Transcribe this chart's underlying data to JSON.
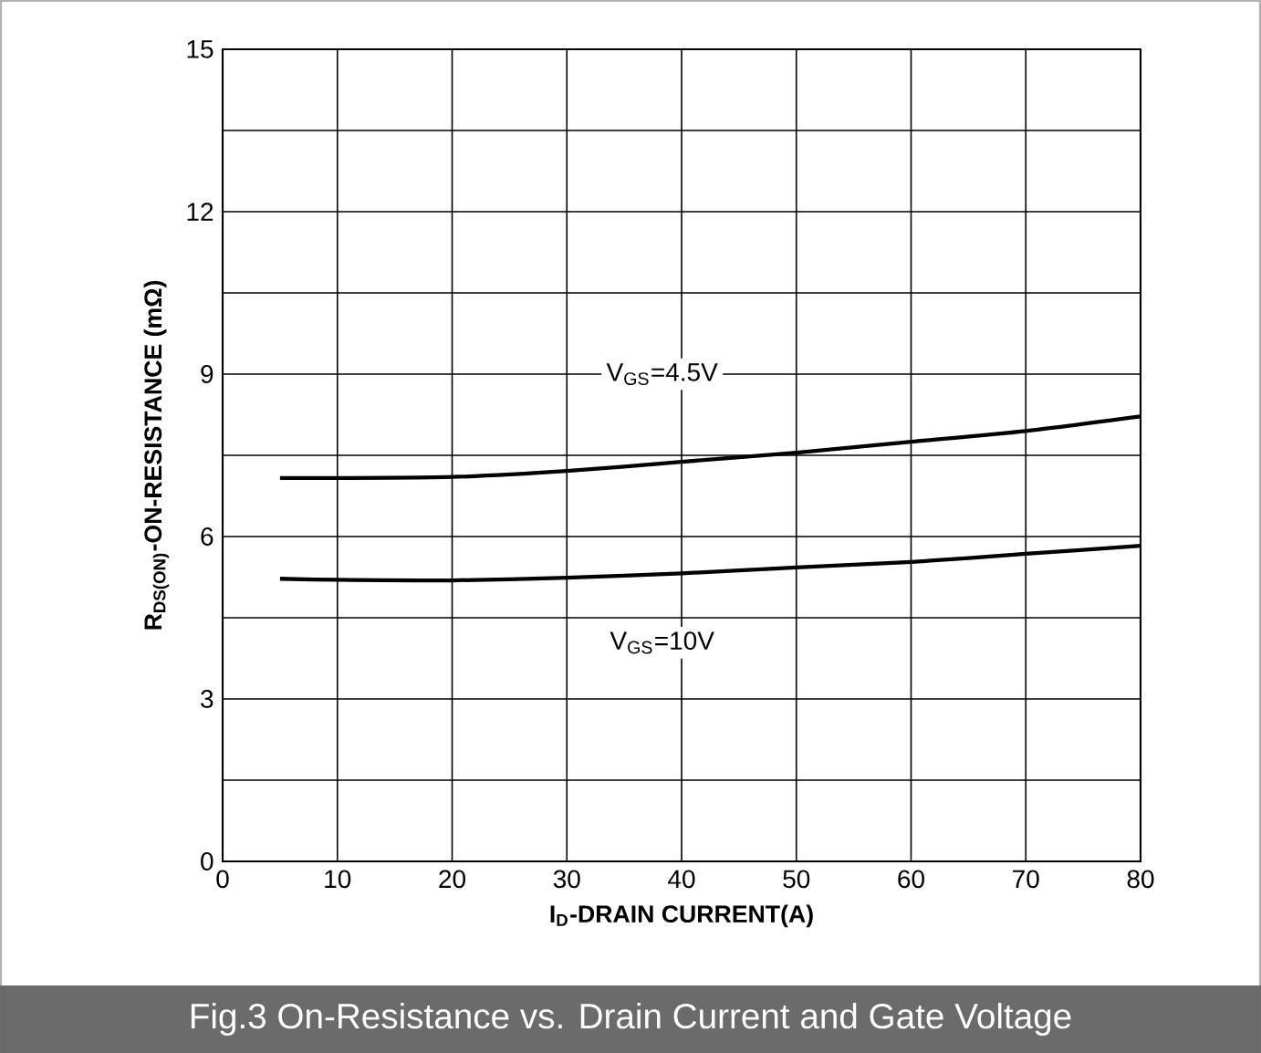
{
  "chart_data": {
    "type": "line",
    "title": "Fig.3 On-Resistance vs. Drain Current and Gate Voltage",
    "xlabel": "I$_{D}$-DRAIN CURRENT(A)",
    "ylabel": "R$_{DS(ON)}$-ON-RESISTANCE (mΩ)",
    "xlim": [
      0,
      80
    ],
    "xticks": [
      0,
      10,
      20,
      30,
      40,
      50,
      60,
      70,
      80
    ],
    "ylim": [
      0,
      15
    ],
    "yticks": [
      0,
      {
        "value": 1.5,
        "label": null
      },
      3,
      {
        "value": 4.5,
        "label": null
      },
      6,
      {
        "value": 7.5,
        "label": null
      },
      9,
      {
        "value": 10.5,
        "label": null
      },
      12,
      {
        "value": 13.5,
        "label": null
      },
      15
    ],
    "grid": true,
    "marker": "none",
    "line_style": "solid",
    "series": [
      {
        "name": "V$_{GS}$=4.5V",
        "color": "#000000",
        "x": [
          5,
          10,
          20,
          30,
          40,
          50,
          60,
          70,
          80
        ],
        "values": [
          7.08,
          7.08,
          7.1,
          7.21,
          7.38,
          7.55,
          7.75,
          7.95,
          8.22
        ]
      },
      {
        "name": "V$_{GS}$=10V",
        "color": "#000000",
        "x": [
          5,
          10,
          20,
          30,
          40,
          50,
          60,
          70,
          80
        ],
        "values": [
          5.22,
          5.2,
          5.19,
          5.24,
          5.32,
          5.43,
          5.53,
          5.68,
          5.83
        ]
      }
    ]
  }
}
